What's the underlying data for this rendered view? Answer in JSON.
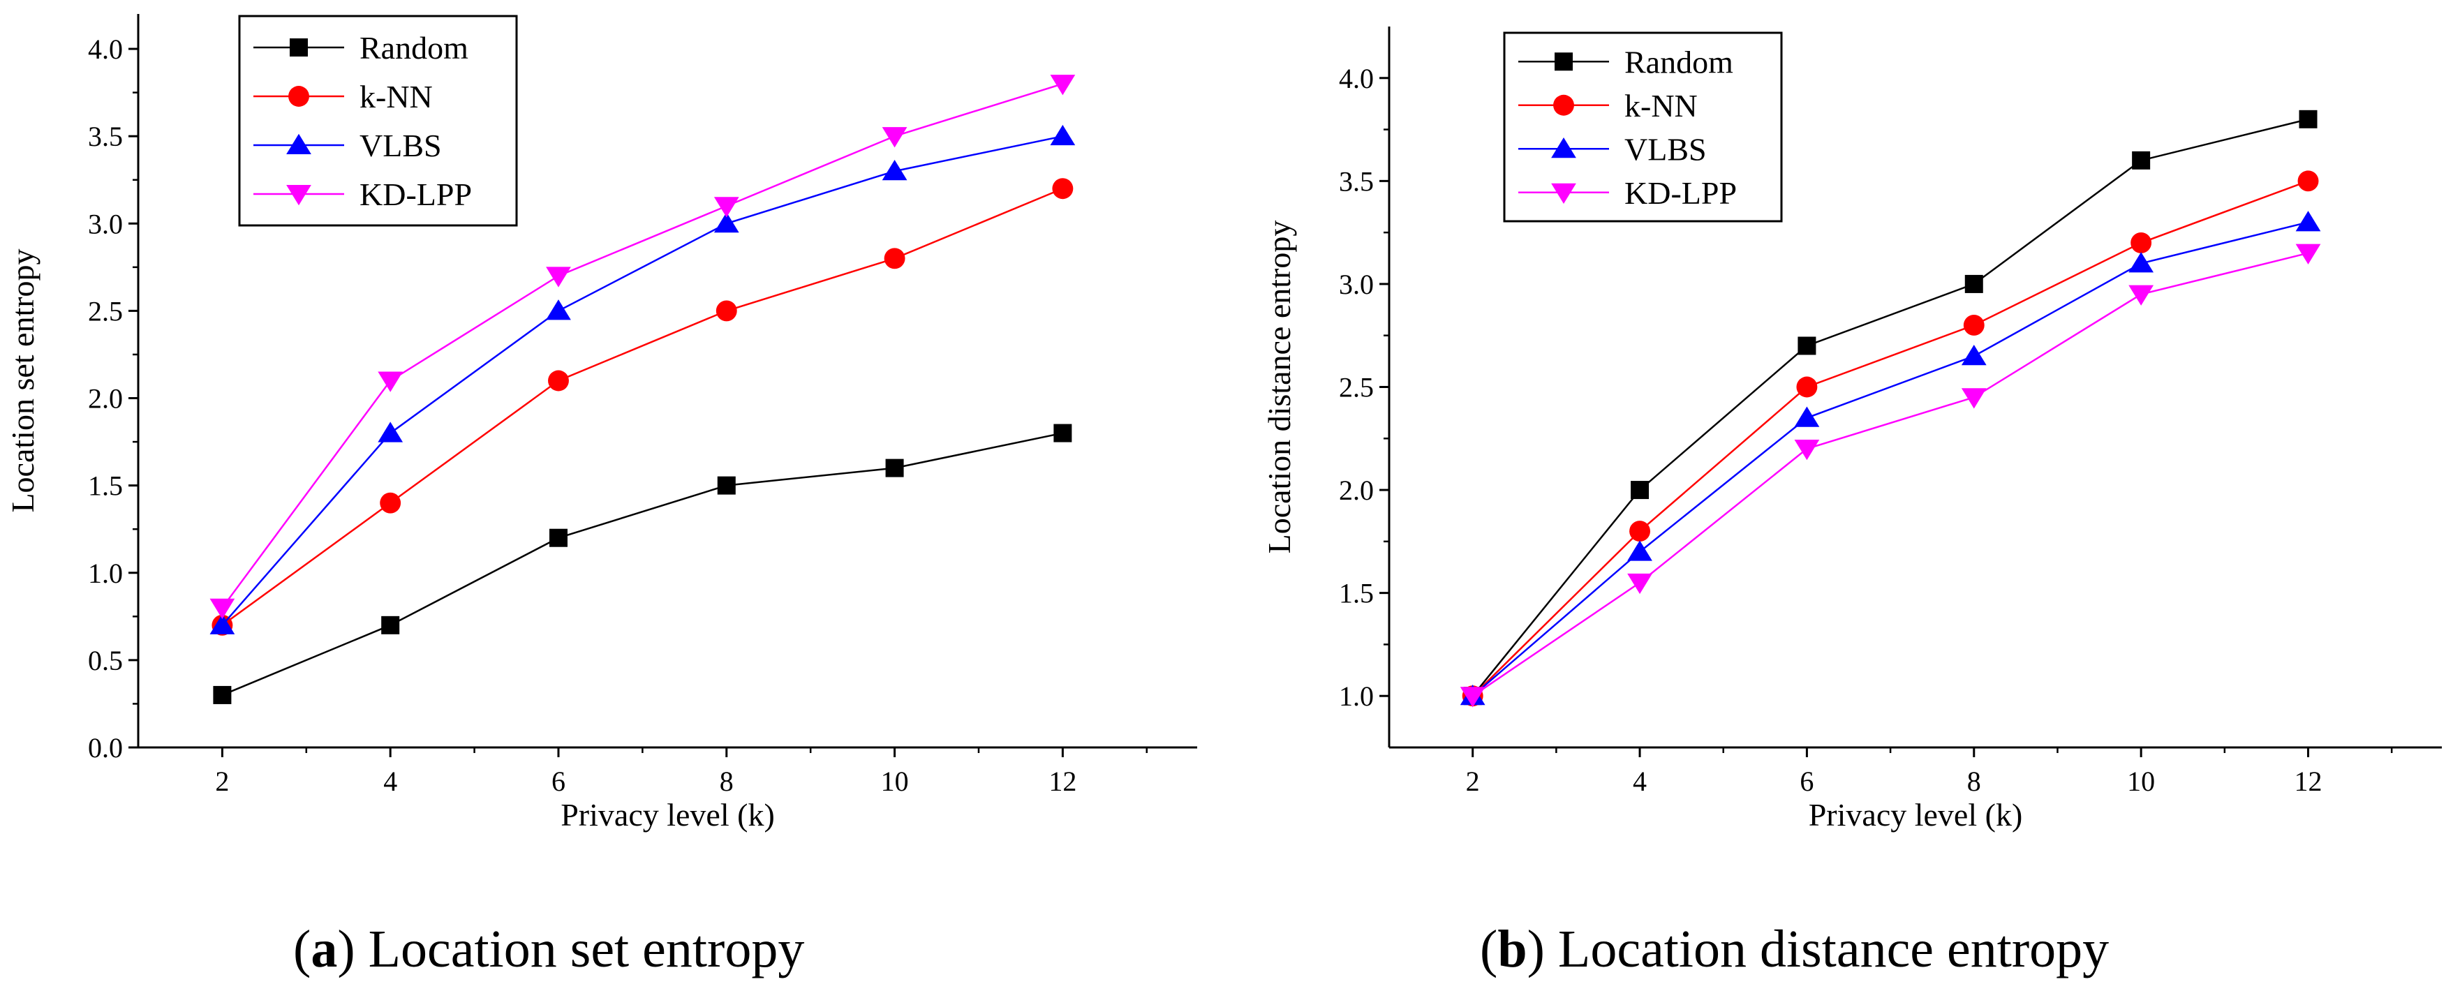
{
  "chart_data": [
    {
      "type": "line",
      "x": [
        2,
        4,
        6,
        8,
        10,
        12
      ],
      "xlabel": "Privacy level (k)",
      "ylabel": "Location set entropy",
      "xlim": [
        1,
        13.6
      ],
      "ylim": [
        0,
        4.2
      ],
      "xticks": [
        2,
        4,
        6,
        8,
        10,
        12
      ],
      "yticks": [
        0.0,
        0.5,
        1.0,
        1.5,
        2.0,
        2.5,
        3.0,
        3.5,
        4.0
      ],
      "grid": false,
      "legend_position": "top-left",
      "caption_letter": "a",
      "caption_text": "Location set entropy",
      "series": [
        {
          "name": "Random",
          "color": "#000000",
          "marker": "square",
          "values": [
            0.3,
            0.7,
            1.2,
            1.5,
            1.6,
            1.8
          ]
        },
        {
          "name": "k-NN",
          "color": "#ff0000",
          "marker": "circle",
          "values": [
            0.7,
            1.4,
            2.1,
            2.5,
            2.8,
            3.2
          ]
        },
        {
          "name": "VLBS",
          "color": "#0000ff",
          "marker": "triangle-up",
          "values": [
            0.7,
            1.8,
            2.5,
            3.0,
            3.3,
            3.5
          ]
        },
        {
          "name": "KD-LPP",
          "color": "#ff00ff",
          "marker": "triangle-down",
          "values": [
            0.8,
            2.1,
            2.7,
            3.1,
            3.5,
            3.8
          ]
        }
      ]
    },
    {
      "type": "line",
      "x": [
        2,
        4,
        6,
        8,
        10,
        12
      ],
      "xlabel": "Privacy level (k)",
      "ylabel": "Location distance entropy",
      "xlim": [
        1,
        13.6
      ],
      "ylim": [
        0.75,
        4.25
      ],
      "xticks": [
        2,
        4,
        6,
        8,
        10,
        12
      ],
      "yticks": [
        1.0,
        1.5,
        2.0,
        2.5,
        3.0,
        3.5,
        4.0
      ],
      "grid": false,
      "legend_position": "top-left",
      "caption_letter": "b",
      "caption_text": "Location distance entropy",
      "series": [
        {
          "name": "Random",
          "color": "#000000",
          "marker": "square",
          "values": [
            1.0,
            2.0,
            2.7,
            3.0,
            3.6,
            3.8
          ]
        },
        {
          "name": "k-NN",
          "color": "#ff0000",
          "marker": "circle",
          "values": [
            1.0,
            1.8,
            2.5,
            2.8,
            3.2,
            3.5
          ]
        },
        {
          "name": "VLBS",
          "color": "#0000ff",
          "marker": "triangle-up",
          "values": [
            1.0,
            1.7,
            2.35,
            2.65,
            3.1,
            3.3
          ]
        },
        {
          "name": "KD-LPP",
          "color": "#ff00ff",
          "marker": "triangle-down",
          "values": [
            1.0,
            1.55,
            2.2,
            2.45,
            2.95,
            3.15
          ]
        }
      ]
    }
  ]
}
